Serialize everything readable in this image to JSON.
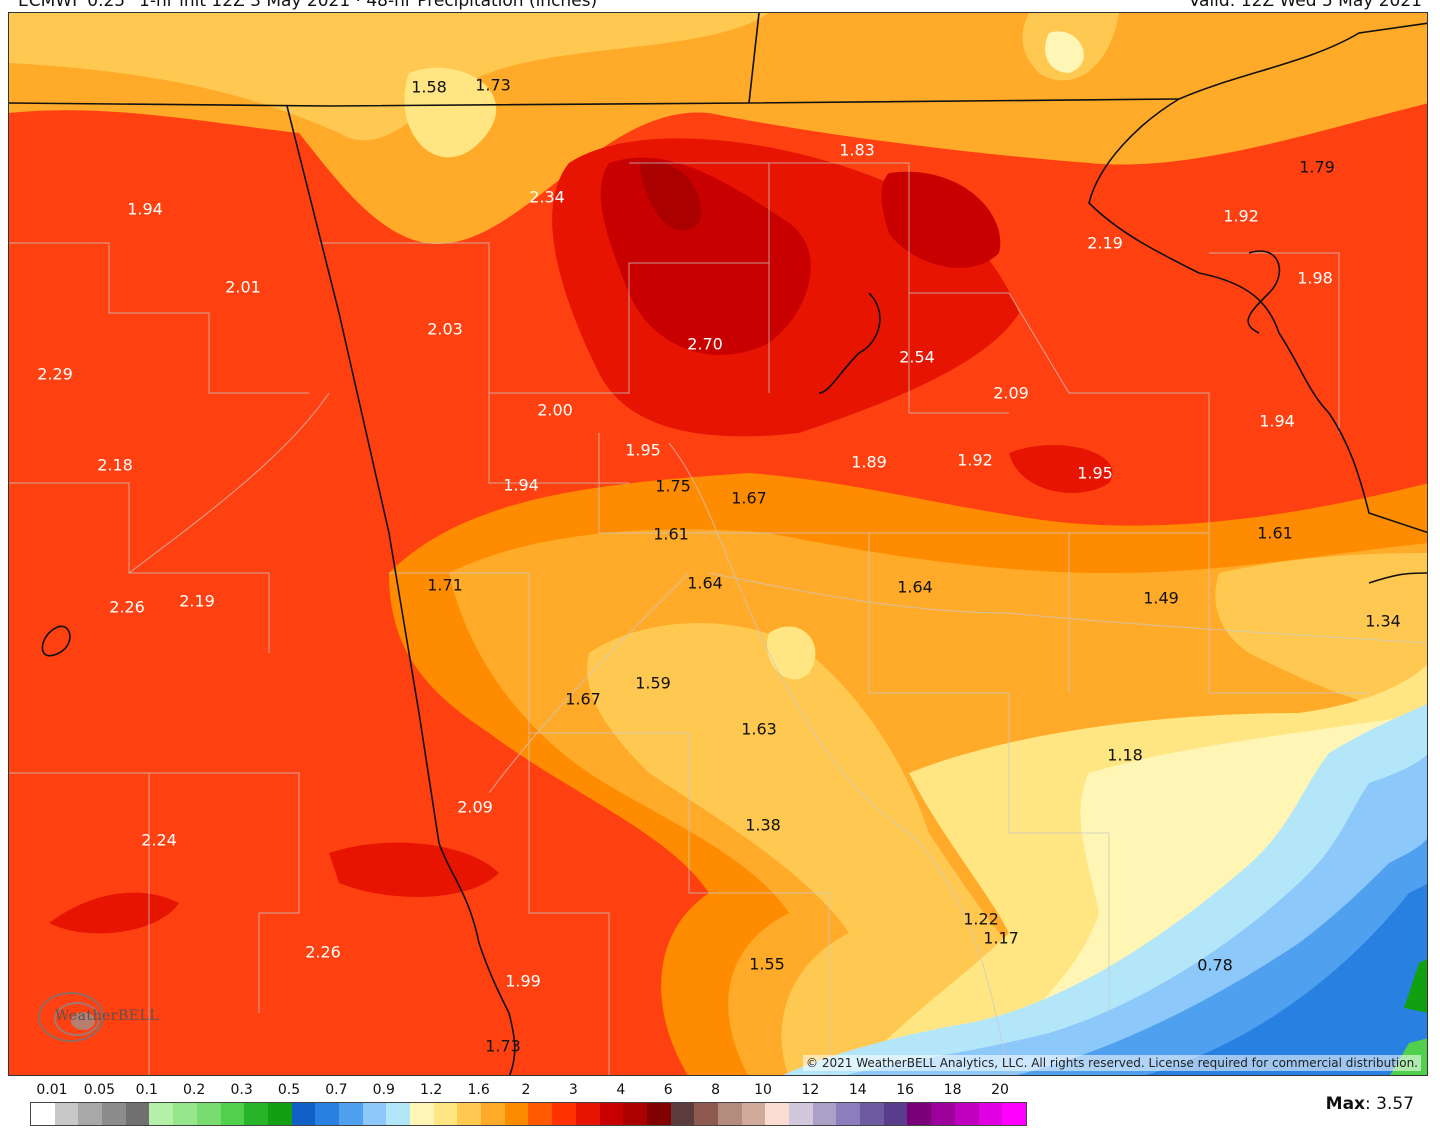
{
  "header": {
    "left_text": "ECMWF 0.25° 1-hr init  12Z 3 May 2021  ·  48-hr Precipitation (inches)",
    "right_text": "Valid: 12Z Wed 5 May 2021"
  },
  "copyright": "© 2021 WeatherBELL Analytics, LLC. All rights reserved. License required for commercial distribution.",
  "logo_text": "WeatherBELL",
  "max_label": "Max",
  "max_value": ": 3.57",
  "legend": {
    "ticks": [
      "0.01",
      "0.05",
      "0.1",
      "0.2",
      "0.3",
      "0.5",
      "0.7",
      "0.9",
      "1.2",
      "1.6",
      "2",
      "3",
      "4",
      "6",
      "8",
      "10",
      "12",
      "14",
      "16",
      "18",
      "20"
    ],
    "colors": [
      "#ffffff",
      "#c8c8c8",
      "#a8a8a8",
      "#8c8c8c",
      "#707070",
      "#b4f0a8",
      "#96e68c",
      "#78dc70",
      "#50d04c",
      "#28b428",
      "#10a010",
      "#1060c8",
      "#2880e0",
      "#50a0f0",
      "#8cc8fa",
      "#b4e6fa",
      "#fff5b4",
      "#ffe682",
      "#ffc850",
      "#ffaa28",
      "#ff8c00",
      "#ff5a00",
      "#ff3200",
      "#e61400",
      "#c80000",
      "#aa0000",
      "#820000",
      "#5a3c3c",
      "#8c5a50",
      "#b48c7d",
      "#d2aa9b",
      "#fadcd2",
      "#d2c8dc",
      "#aaa0c8",
      "#8c7dbe",
      "#6e5aa0",
      "#5a3c8c",
      "#780078",
      "#9b009b",
      "#be00be",
      "#e100e1",
      "#ff00ff"
    ]
  },
  "values": [
    {
      "v": "1.58",
      "d": true
    },
    {
      "v": "1.73",
      "d": true
    },
    {
      "v": "1.83",
      "d": false
    },
    {
      "v": "1.79",
      "d": true
    },
    {
      "v": "1.94",
      "d": false
    },
    {
      "v": "2.34",
      "d": false
    },
    {
      "v": "1.92",
      "d": false
    },
    {
      "v": "2.19",
      "d": false
    },
    {
      "v": "2.01",
      "d": false
    },
    {
      "v": "1.98",
      "d": false
    },
    {
      "v": "2.03",
      "d": false
    },
    {
      "v": "2.70",
      "d": false
    },
    {
      "v": "2.54",
      "d": false
    },
    {
      "v": "2.29",
      "d": false
    },
    {
      "v": "2.09",
      "d": false
    },
    {
      "v": "2.00",
      "d": false
    },
    {
      "v": "1.94",
      "d": false
    },
    {
      "v": "1.95",
      "d": false
    },
    {
      "v": "1.89",
      "d": false
    },
    {
      "v": "1.92",
      "d": false
    },
    {
      "v": "1.95",
      "d": false
    },
    {
      "v": "2.18",
      "d": false
    },
    {
      "v": "1.94",
      "d": false
    },
    {
      "v": "1.75",
      "d": true
    },
    {
      "v": "1.67",
      "d": true
    },
    {
      "v": "1.61",
      "d": true
    },
    {
      "v": "1.61",
      "d": true
    },
    {
      "v": "1.71",
      "d": true
    },
    {
      "v": "1.64",
      "d": true
    },
    {
      "v": "1.64",
      "d": true
    },
    {
      "v": "1.49",
      "d": true
    },
    {
      "v": "2.26",
      "d": false
    },
    {
      "v": "2.19",
      "d": false
    },
    {
      "v": "1.34",
      "d": true
    },
    {
      "v": "1.59",
      "d": true
    },
    {
      "v": "1.67",
      "d": true
    },
    {
      "v": "1.63",
      "d": true
    },
    {
      "v": "1.18",
      "d": true
    },
    {
      "v": "2.09",
      "d": false
    },
    {
      "v": "1.38",
      "d": true
    },
    {
      "v": "2.24",
      "d": false
    },
    {
      "v": "1.22",
      "d": true
    },
    {
      "v": "1.17",
      "d": true
    },
    {
      "v": "2.26",
      "d": false
    },
    {
      "v": "1.55",
      "d": true
    },
    {
      "v": "0.78",
      "d": true
    },
    {
      "v": "1.99",
      "d": false
    },
    {
      "v": "1.73",
      "d": true
    }
  ]
}
